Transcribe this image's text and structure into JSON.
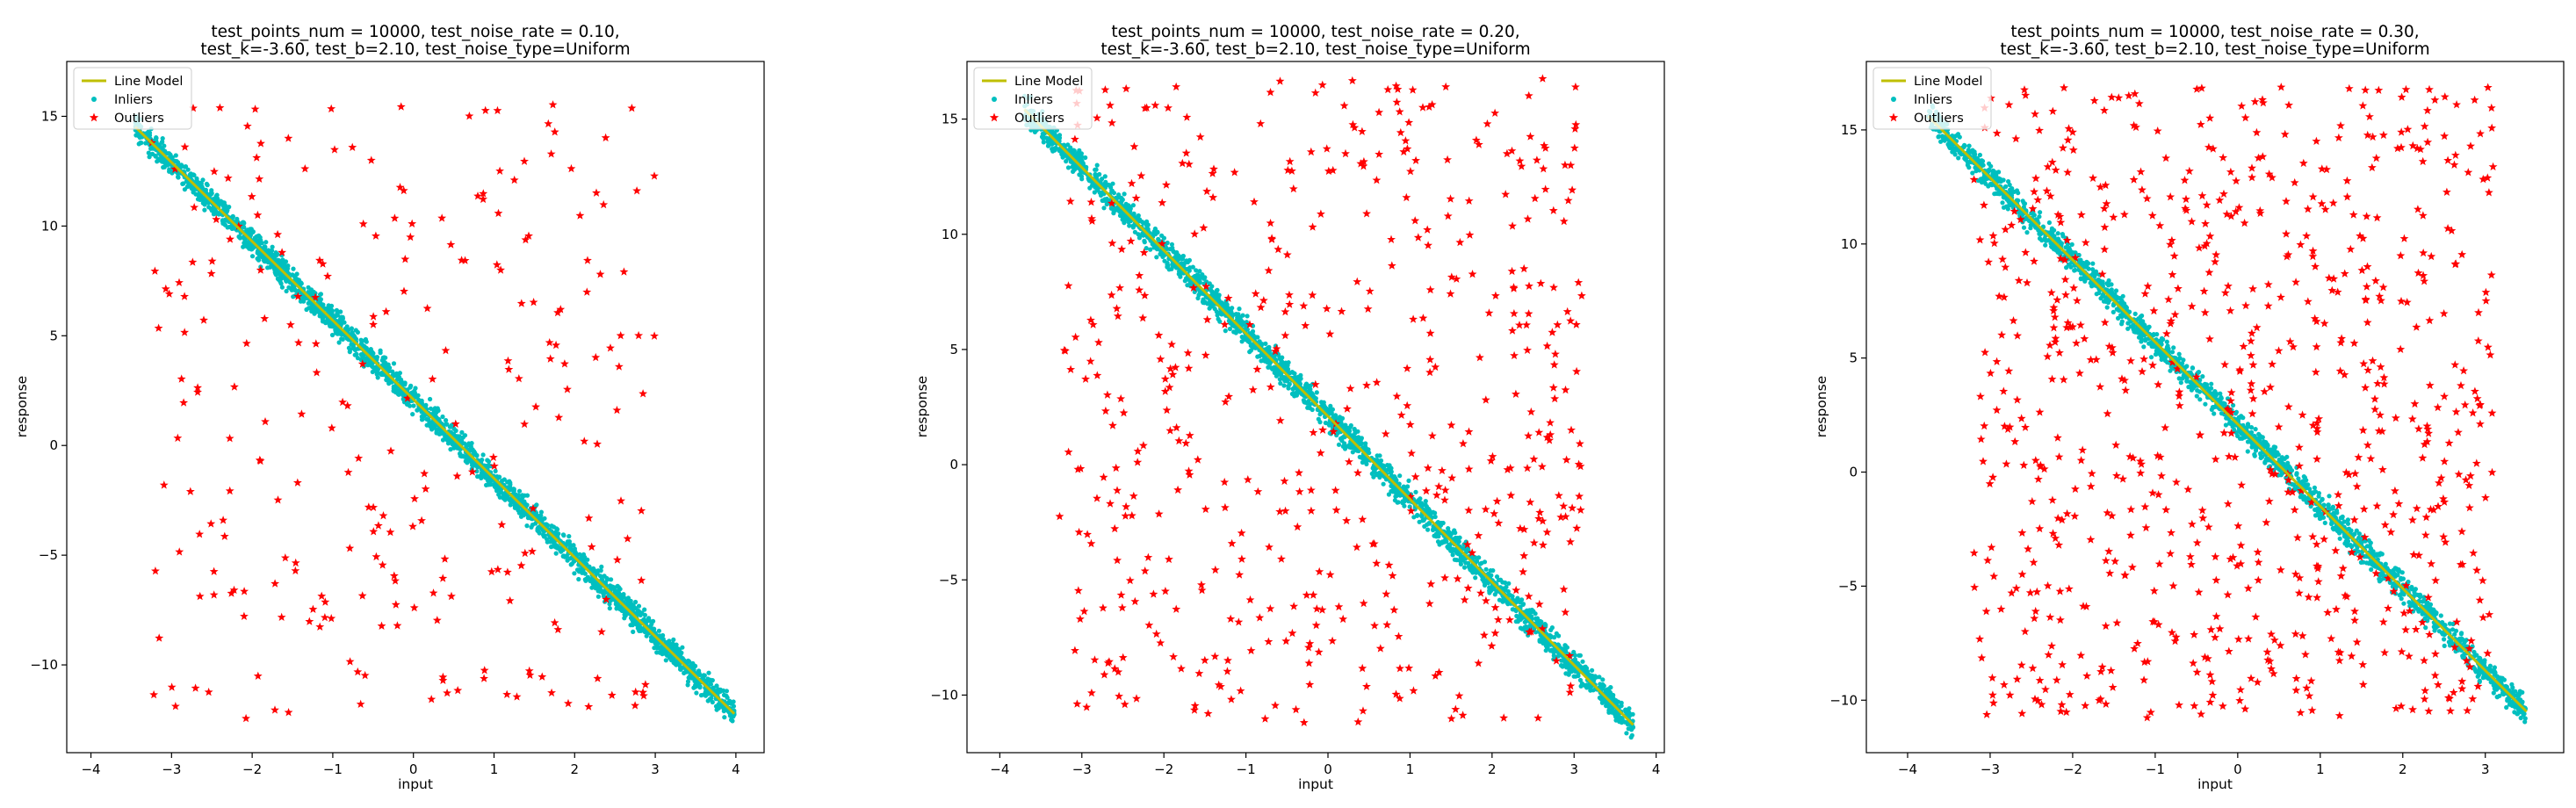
{
  "figure": {
    "background": "#ffffff"
  },
  "chart_data": [
    {
      "type": "scatter",
      "title_lines": [
        "test_points_num = 10000, test_noise_rate = 0.10,",
        "test_k=-3.60, test_b=2.10, test_noise_type=Uniform"
      ],
      "xlabel": "input",
      "ylabel": "response",
      "xlim": [
        -4.3,
        4.35
      ],
      "ylim": [
        -14.0,
        17.5
      ],
      "xticks": [
        -4,
        -3,
        -2,
        -1,
        0,
        1,
        2,
        3,
        4
      ],
      "yticks": [
        -10,
        -5,
        0,
        5,
        10,
        15
      ],
      "grid": false,
      "legend_position": "upper-left",
      "line_model": {
        "k": -3.6,
        "b": 2.1,
        "x_range": [
          -3.45,
          3.98
        ]
      },
      "inlier_x_range": [
        -3.45,
        3.98
      ],
      "inlier_noise_halfwidth": 0.55,
      "outlier_x_range": [
        -3.3,
        3.0
      ],
      "outlier_y_range": [
        -12.5,
        16.0
      ],
      "noise_rate": 0.1,
      "series": [
        {
          "name": "Line Model",
          "kind": "line",
          "color": "#bfbf00"
        },
        {
          "name": "Inliers",
          "kind": "points",
          "color": "#00bfbf"
        },
        {
          "name": "Outliers",
          "kind": "stars",
          "color": "#ff0000"
        }
      ]
    },
    {
      "type": "scatter",
      "title_lines": [
        "test_points_num = 10000, test_noise_rate = 0.20,",
        "test_k=-3.60, test_b=2.10, test_noise_type=Uniform"
      ],
      "xlabel": "input",
      "ylabel": "response",
      "xlim": [
        -4.4,
        4.1
      ],
      "ylim": [
        -12.5,
        17.5
      ],
      "xticks": [
        -4,
        -3,
        -2,
        -1,
        0,
        1,
        2,
        3,
        4
      ],
      "yticks": [
        -10,
        -5,
        0,
        5,
        10,
        15
      ],
      "grid": false,
      "legend_position": "upper-left",
      "line_model": {
        "k": -3.6,
        "b": 2.1,
        "x_range": [
          -3.7,
          3.72
        ]
      },
      "inlier_x_range": [
        -3.7,
        3.72
      ],
      "inlier_noise_halfwidth": 0.55,
      "outlier_x_range": [
        -3.3,
        3.1
      ],
      "outlier_y_range": [
        -11.2,
        16.8
      ],
      "noise_rate": 0.2,
      "series": [
        {
          "name": "Line Model",
          "kind": "line",
          "color": "#bfbf00"
        },
        {
          "name": "Inliers",
          "kind": "points",
          "color": "#00bfbf"
        },
        {
          "name": "Outliers",
          "kind": "stars",
          "color": "#ff0000"
        }
      ]
    },
    {
      "type": "scatter",
      "title_lines": [
        "test_points_num = 10000, test_noise_rate = 0.30,",
        "test_k=-3.60, test_b=2.10, test_noise_type=Uniform"
      ],
      "xlabel": "input",
      "ylabel": "response",
      "xlim": [
        -4.5,
        3.95
      ],
      "ylim": [
        -12.3,
        18.0
      ],
      "xticks": [
        -4,
        -3,
        -2,
        -1,
        0,
        1,
        2,
        3
      ],
      "yticks": [
        -10,
        -5,
        0,
        5,
        10,
        15
      ],
      "grid": false,
      "legend_position": "upper-left",
      "line_model": {
        "k": -3.6,
        "b": 2.1,
        "x_range": [
          -3.75,
          3.5
        ]
      },
      "inlier_x_range": [
        -3.75,
        3.5
      ],
      "inlier_noise_halfwidth": 0.55,
      "outlier_x_range": [
        -3.2,
        3.1
      ],
      "outlier_y_range": [
        -10.8,
        16.9
      ],
      "noise_rate": 0.3,
      "series": [
        {
          "name": "Line Model",
          "kind": "line",
          "color": "#bfbf00"
        },
        {
          "name": "Inliers",
          "kind": "points",
          "color": "#00bfbf"
        },
        {
          "name": "Outliers",
          "kind": "stars",
          "color": "#ff0000"
        }
      ]
    }
  ]
}
